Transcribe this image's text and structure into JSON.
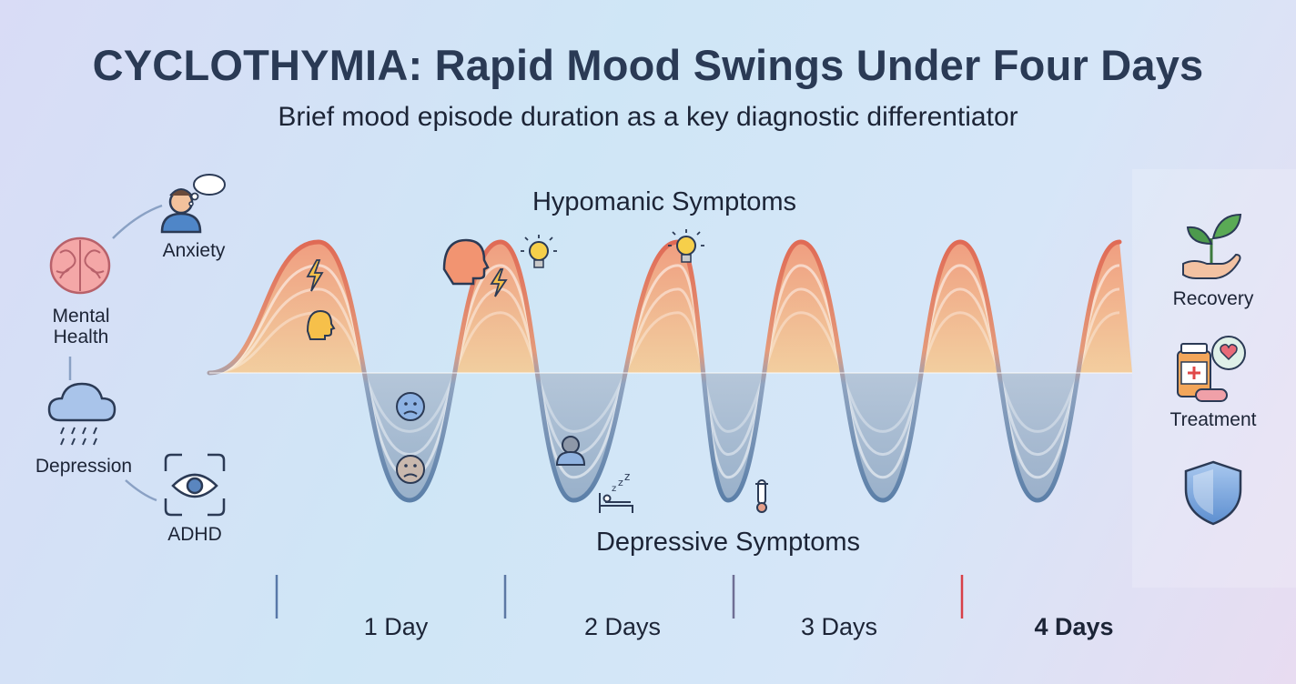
{
  "title": "CYCLOTHYMIA: Rapid Mood Swings Under Four Days",
  "subtitle": "Brief mood episode duration as a key diagnostic differentiator",
  "wave": {
    "upper_label": "Hypomanic Symptoms",
    "lower_label": "Depressive Symptoms",
    "colors": {
      "high": "#e06a55",
      "low": "#5b7fa8"
    }
  },
  "left_concepts": {
    "mental_health": "Mental\nHealth",
    "anxiety": "Anxiety",
    "depression": "Depression",
    "adhd": "ADHD"
  },
  "right_items": {
    "recovery": "Recovery",
    "treatment": "Treatment"
  },
  "timeline": {
    "labels": [
      "1 Day",
      "2 Days",
      "3 Days",
      "4 Days"
    ],
    "emphasized_index": 3
  }
}
